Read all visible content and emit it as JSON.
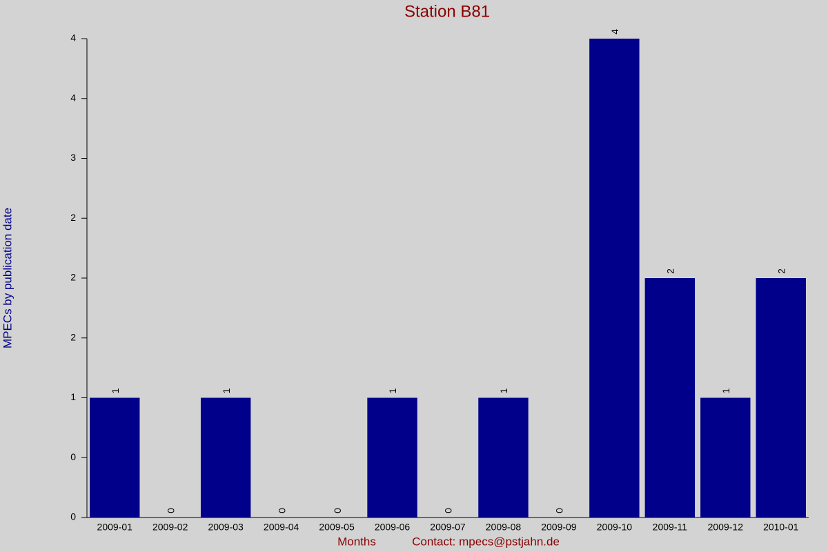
{
  "chart_data": {
    "type": "bar",
    "title": "Station B81",
    "x_label": "Months",
    "contact": "Contact: mpecs@pstjahn.de",
    "y_label": "MPECs by publication date",
    "categories": [
      "2009-01",
      "2009-02",
      "2009-03",
      "2009-04",
      "2009-05",
      "2009-06",
      "2009-07",
      "2009-08",
      "2009-09",
      "2009-10",
      "2009-11",
      "2009-12",
      "2010-01"
    ],
    "values": [
      1,
      0,
      1,
      0,
      0,
      1,
      0,
      1,
      0,
      4,
      2,
      1,
      2
    ],
    "color": "#00008b",
    "ylim": [
      0,
      4
    ],
    "yticks": [
      0,
      {
        "value": 0.5,
        "label": "0"
      },
      1,
      {
        "value": 1.5,
        "label": "2"
      },
      2,
      {
        "value": 2.5,
        "label": "2"
      },
      3,
      {
        "value": 3.5,
        "label": "4"
      },
      4
    ],
    "grid": false
  }
}
